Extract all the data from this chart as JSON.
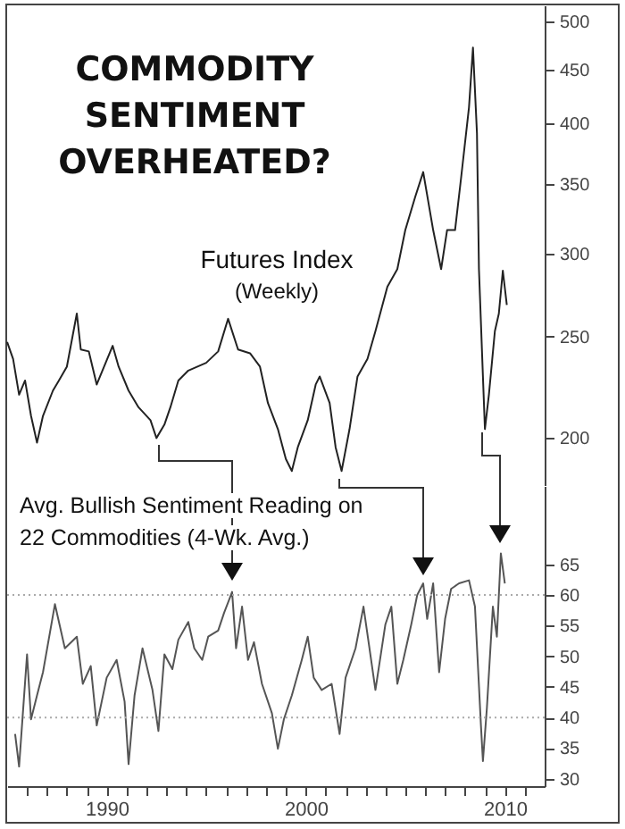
{
  "chart_data": [
    {
      "type": "line",
      "title": "COMMODITY SENTIMENT OVERHEATED?",
      "annotations": [
        "Futures Index",
        "(Weekly)"
      ],
      "log": "y",
      "tick_labels": "y",
      "xlim": [
        1985,
        2012
      ],
      "xticks": [
        1990,
        2000,
        2010
      ],
      "ylim": [
        180,
        518
      ],
      "yticks": [
        200,
        250,
        300,
        350,
        400,
        450,
        500
      ],
      "series": [
        {
          "color": "#222222",
          "x": [
            1985.0,
            1985.3,
            1985.6,
            1985.9,
            1986.2,
            1986.5,
            1986.8,
            1987.3,
            1987.6,
            1988.0,
            1988.5,
            1988.7,
            1989.1,
            1989.5,
            1990.3,
            1990.6,
            1991.1,
            1991.6,
            1992.2,
            1992.5,
            1992.9,
            1993.2,
            1993.6,
            1994.1,
            1995.0,
            1995.6,
            1996.1,
            1996.6,
            1997.2,
            1997.7,
            1998.1,
            1998.6,
            1999.0,
            1999.3,
            1999.6,
            2000.1,
            2000.5,
            2000.7,
            2001.2,
            2001.5,
            2001.8,
            2002.2,
            2002.6,
            2003.1,
            2003.5,
            2004.1,
            2004.6,
            2005.0,
            2005.5,
            2005.9,
            2006.4,
            2006.8,
            2007.1,
            2007.5,
            2007.8,
            2008.2,
            2008.4,
            2008.6,
            2008.7,
            2008.9,
            2009.0,
            2009.2,
            2009.5,
            2009.7,
            2009.9,
            2010.1
          ],
          "values": [
            247,
            238,
            220,
            227,
            210,
            198,
            210,
            222,
            227,
            234,
            263,
            243,
            242,
            225,
            245,
            234,
            222,
            214,
            208,
            200,
            206,
            214,
            227,
            232,
            236,
            242,
            260,
            243,
            241,
            234,
            216,
            204,
            191,
            186,
            196,
            208,
            225,
            229,
            216,
            196,
            186,
            204,
            229,
            238,
            253,
            279,
            290,
            316,
            340,
            359,
            316,
            290,
            316,
            316,
            354,
            414,
            472,
            391,
            290,
            229,
            204,
            220,
            253,
            263,
            289,
            268
          ]
        }
      ]
    },
    {
      "type": "line",
      "annotations": [
        "Avg. Bullish Sentiment Reading on",
        "22 Commodities (4-Wk. Avg.)"
      ],
      "xlim": [
        1985,
        2012
      ],
      "xticks": [
        {
          "value": 1986,
          "label": null
        },
        {
          "value": 1987,
          "label": null
        },
        {
          "value": 1988,
          "label": null
        },
        {
          "value": 1989,
          "label": null
        },
        1990,
        {
          "value": 1991,
          "label": null
        },
        {
          "value": 1992,
          "label": null
        },
        {
          "value": 1993,
          "label": null
        },
        {
          "value": 1994,
          "label": null
        },
        {
          "value": 1995,
          "label": null
        },
        {
          "value": 1996,
          "label": null
        },
        {
          "value": 1997,
          "label": null
        },
        {
          "value": 1998,
          "label": null
        },
        {
          "value": 1999,
          "label": null
        },
        2000,
        {
          "value": 2001,
          "label": null
        },
        {
          "value": 2002,
          "label": null
        },
        {
          "value": 2003,
          "label": null
        },
        {
          "value": 2004,
          "label": null
        },
        {
          "value": 2005,
          "label": null
        },
        {
          "value": 2006,
          "label": null
        },
        {
          "value": 2007,
          "label": null
        },
        {
          "value": 2008,
          "label": null
        },
        {
          "value": 2009,
          "label": null
        },
        2010,
        {
          "value": 2011,
          "label": null
        }
      ],
      "ylim": [
        28.8,
        77.8
      ],
      "yticks": [
        30,
        35,
        40,
        45,
        50,
        55,
        60,
        65
      ],
      "ref_lines": [
        {
          "axis": "y",
          "value": 60,
          "color": "#aaaaaa",
          "line_style": "dotted"
        },
        {
          "axis": "y",
          "value": 40,
          "color": "#aaaaaa",
          "line_style": "dotted"
        }
      ],
      "series": [
        {
          "color": "#555555",
          "x": [
            1985.4,
            1985.6,
            1986.0,
            1986.2,
            1986.5,
            1986.8,
            1987.4,
            1987.9,
            1988.5,
            1988.8,
            1989.2,
            1989.5,
            1990.0,
            1990.5,
            1990.9,
            1991.1,
            1991.4,
            1991.8,
            1992.3,
            1992.6,
            1992.9,
            1993.3,
            1993.6,
            1994.1,
            1994.4,
            1994.8,
            1995.1,
            1995.6,
            1995.9,
            1996.3,
            1996.5,
            1996.8,
            1997.1,
            1997.4,
            1997.8,
            1998.3,
            1998.6,
            1998.9,
            1999.3,
            1999.8,
            2000.1,
            2000.4,
            2000.8,
            2001.3,
            2001.7,
            2002.0,
            2002.5,
            2002.9,
            2003.2,
            2003.5,
            2004.0,
            2004.3,
            2004.6,
            2004.9,
            2005.3,
            2005.6,
            2005.9,
            2006.1,
            2006.4,
            2006.7,
            2007.0,
            2007.3,
            2007.7,
            2008.2,
            2008.5,
            2008.8,
            2008.9,
            2009.1,
            2009.4,
            2009.6,
            2009.8,
            2010.0
          ],
          "values": [
            37.3,
            32.0,
            50.3,
            39.7,
            43.6,
            47.4,
            58.5,
            51.3,
            53.2,
            45.5,
            48.4,
            38.7,
            46.5,
            49.4,
            42.6,
            32.4,
            43.6,
            51.3,
            44.5,
            37.8,
            50.3,
            47.9,
            52.7,
            55.6,
            51.3,
            49.4,
            53.2,
            54.2,
            57.1,
            60.5,
            51.3,
            58.1,
            49.4,
            52.3,
            45.5,
            40.7,
            34.9,
            39.7,
            43.6,
            49.4,
            53.2,
            46.5,
            44.5,
            45.5,
            37.3,
            46.5,
            51.3,
            58.1,
            51.3,
            44.5,
            55.2,
            58.1,
            45.5,
            49.4,
            55.2,
            60.0,
            61.9,
            56.1,
            61.9,
            47.4,
            56.1,
            61.0,
            61.9,
            62.4,
            58.1,
            38.7,
            32.9,
            41.6,
            58.1,
            53.2,
            66.8,
            61.9
          ]
        }
      ]
    }
  ]
}
